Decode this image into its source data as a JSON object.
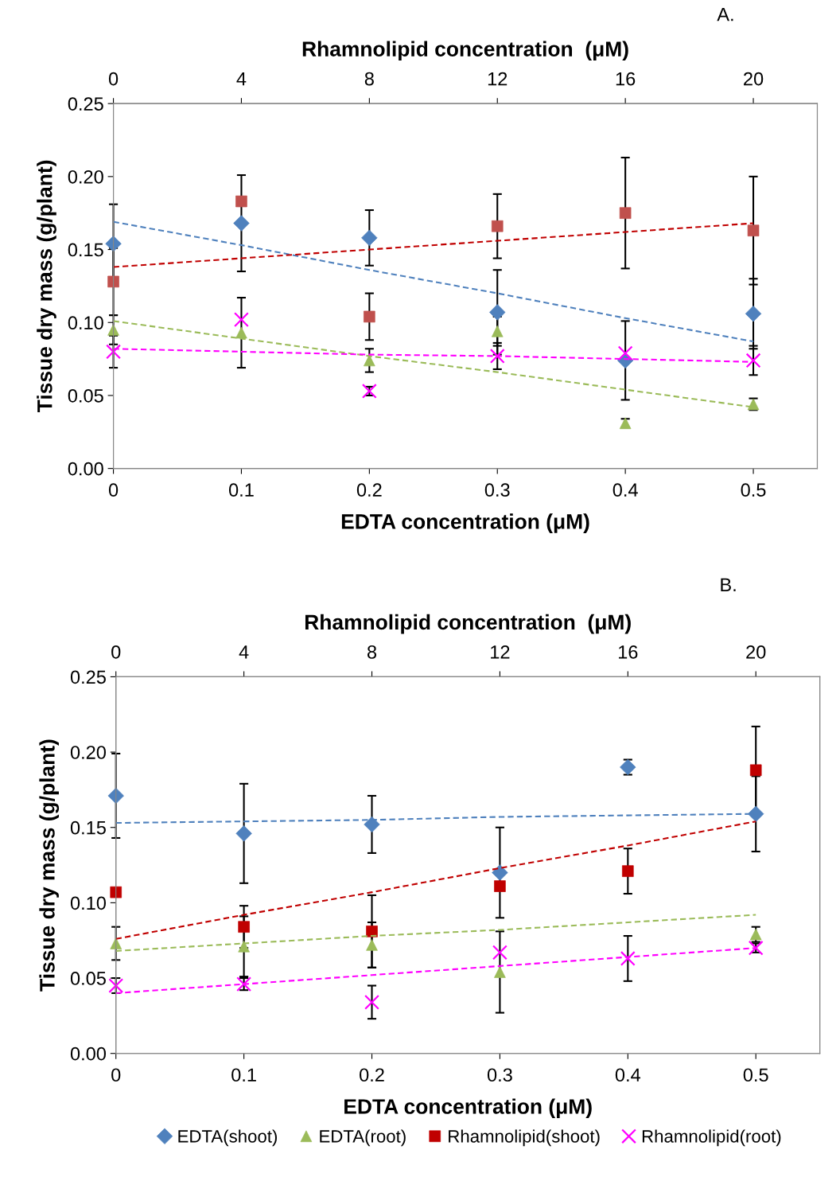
{
  "chart_data": [
    {
      "type": "scatter",
      "x2label": "Rhamnolipid concentration  (μM)",
      "xlabel": "EDTA concentration (μM)",
      "ylabel": "Tissue dry mass (g/plant)",
      "annotations": [
        "A."
      ],
      "x": [
        0,
        0.1,
        0.2,
        0.3,
        0.4,
        0.5
      ],
      "xlim": [
        0,
        0.55
      ],
      "xticks": [
        0,
        0.1,
        0.2,
        0.3,
        0.4,
        0.5
      ],
      "x2lim": [
        0,
        22
      ],
      "x2ticks": [
        0,
        4,
        8,
        12,
        16,
        20
      ],
      "ylim": [
        0,
        0.25
      ],
      "yticks": [
        {
          "value": 0,
          "label": "0.00"
        },
        {
          "value": 0.05,
          "label": "0.05"
        },
        {
          "value": 0.1,
          "label": "0.10"
        },
        {
          "value": 0.15,
          "label": "0.15"
        },
        {
          "value": 0.2,
          "label": "0.20"
        },
        {
          "value": 0.25,
          "label": "0.25"
        }
      ],
      "grid": false,
      "legend": false,
      "series": [
        {
          "color": "#4f81bd",
          "marker": "diamond",
          "values": [
            0.154,
            0.168,
            0.158,
            0.107,
            0.074,
            0.106
          ],
          "errors": [
            0.027,
            0.033,
            0.019,
            0.029,
            0.027,
            0.024
          ]
        },
        {
          "color": "#9bbb59",
          "marker": "triangle",
          "values": [
            0.095,
            0.093,
            0.074,
            0.094,
            0.031,
            0.044
          ],
          "errors": [
            0.01,
            0.024,
            0.008,
            0.01,
            0.003,
            0.004
          ]
        },
        {
          "color": "#c0504d",
          "marker": "square",
          "values": [
            0.128,
            0.183,
            0.104,
            0.166,
            0.175,
            0.163
          ],
          "errors": [
            0.023,
            null,
            0.016,
            0.022,
            0.038,
            0.037
          ]
        },
        {
          "color": "#ff00ff",
          "marker": "cross",
          "values": [
            0.08,
            0.102,
            0.053,
            0.077,
            0.079,
            0.074
          ],
          "errors": [
            0.011,
            null,
            0.003,
            0.009,
            null,
            0.01
          ]
        },
        {
          "type": "line",
          "color": "#4f81bd",
          "line_style": "dashed",
          "marker": "none",
          "values": [
            0.169,
            0.153,
            0.136,
            0.12,
            0.103,
            0.087
          ]
        },
        {
          "type": "line",
          "color": "#c00000",
          "line_style": "dashed",
          "marker": "none",
          "values": [
            0.138,
            0.144,
            0.15,
            0.156,
            0.162,
            0.168
          ]
        },
        {
          "type": "line",
          "color": "#9bbb59",
          "line_style": "dashed",
          "marker": "none",
          "values": [
            0.101,
            0.089,
            0.077,
            0.066,
            0.054,
            0.042
          ]
        },
        {
          "type": "line",
          "color": "#ff00ff",
          "line_style": "dashed",
          "marker": "none",
          "values": [
            0.082,
            0.08,
            0.078,
            0.077,
            0.075,
            0.073
          ]
        }
      ]
    },
    {
      "type": "scatter",
      "x2label": "Rhamnolipid concentration  (μM)",
      "xlabel": "EDTA concentration (μM)",
      "ylabel": "Tissue dry mass (g/plant)",
      "annotations": [
        "B."
      ],
      "x": [
        0,
        0.1,
        0.2,
        0.3,
        0.4,
        0.5
      ],
      "xlim": [
        0,
        0.55
      ],
      "xticks": [
        0,
        0.1,
        0.2,
        0.3,
        0.4,
        0.5
      ],
      "x2lim": [
        0,
        22
      ],
      "x2ticks": [
        0,
        4,
        8,
        12,
        16,
        20
      ],
      "ylim": [
        0,
        0.25
      ],
      "yticks": [
        {
          "value": 0,
          "label": "0.00"
        },
        {
          "value": 0.05,
          "label": "0.05"
        },
        {
          "value": 0.1,
          "label": "0.10"
        },
        {
          "value": 0.15,
          "label": "0.15"
        },
        {
          "value": 0.2,
          "label": "0.20"
        },
        {
          "value": 0.25,
          "label": "0.25"
        }
      ],
      "grid": false,
      "legend": "bottom",
      "series": [
        {
          "name": "EDTA(shoot)",
          "color": "#4f81bd",
          "marker": "diamond",
          "values": [
            0.171,
            0.146,
            0.152,
            0.12,
            0.19,
            0.159
          ],
          "errors": [
            0.028,
            0.033,
            0.019,
            0.03,
            0.005,
            0.025
          ]
        },
        {
          "name": "EDTA(root)",
          "color": "#9bbb59",
          "marker": "triangle",
          "values": [
            0.073,
            0.071,
            0.072,
            0.054,
            null,
            0.079
          ],
          "errors": [
            0.011,
            0.02,
            0.015,
            0.027,
            null,
            0.005
          ]
        },
        {
          "name": "Rhamnolipid(shoot)",
          "color": "#c00000",
          "marker": "square",
          "values": [
            0.107,
            0.084,
            0.081,
            0.111,
            0.121,
            0.188
          ],
          "errors": [
            null,
            0.014,
            0.024,
            null,
            0.015,
            0.029
          ]
        },
        {
          "name": "Rhamnolipid(root)",
          "color": "#ff00ff",
          "marker": "cross",
          "values": [
            0.045,
            0.046,
            0.034,
            0.067,
            0.063,
            0.07
          ],
          "errors": [
            0.005,
            0.004,
            0.011,
            null,
            0.015,
            0.003
          ]
        },
        {
          "type": "line",
          "color": "#4f81bd",
          "line_style": "dashed",
          "marker": "none",
          "values": [
            0.153,
            0.154,
            0.155,
            0.157,
            0.158,
            0.159
          ]
        },
        {
          "type": "line",
          "color": "#c00000",
          "line_style": "dashed",
          "marker": "none",
          "values": [
            0.076,
            0.092,
            0.107,
            0.123,
            0.138,
            0.154
          ]
        },
        {
          "type": "line",
          "color": "#9bbb59",
          "line_style": "dashed",
          "marker": "none",
          "values": [
            0.068,
            0.073,
            0.078,
            0.082,
            0.087,
            0.092
          ]
        },
        {
          "type": "line",
          "color": "#ff00ff",
          "line_style": "dashed",
          "marker": "none",
          "values": [
            0.04,
            0.046,
            0.052,
            0.058,
            0.064,
            0.07
          ]
        }
      ]
    }
  ]
}
